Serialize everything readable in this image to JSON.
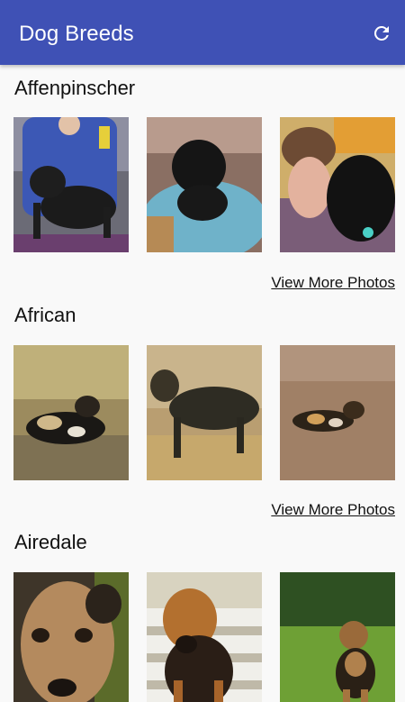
{
  "appbar": {
    "title": "Dog Breeds",
    "refresh_icon": "refresh-icon",
    "color": "#3f51b5"
  },
  "breeds": [
    {
      "name": "Affenpinscher",
      "more_label": "View More Photos"
    },
    {
      "name": "African",
      "more_label": "View More Photos"
    },
    {
      "name": "Airedale"
    }
  ]
}
